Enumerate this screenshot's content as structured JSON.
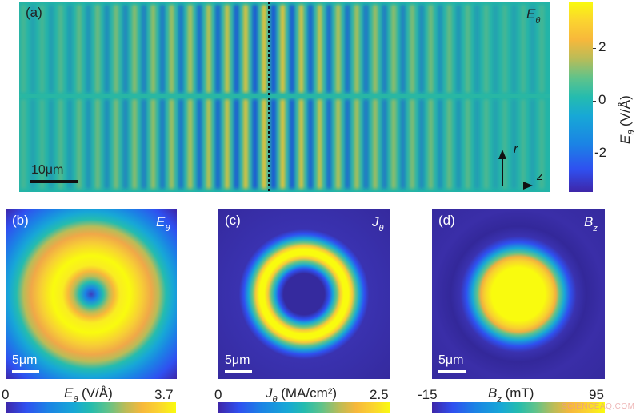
{
  "chart_data": [
    {
      "type": "heatmap",
      "panel": "(a)",
      "title": "E_θ",
      "field": "E_θ",
      "xlabel": "z",
      "ylabel": "r",
      "colorbar": {
        "label": "E_θ (V/Å)",
        "ticks": [
          2,
          0,
          -2
        ],
        "range": [
          -3.4,
          3.5
        ]
      },
      "scale_bar": "10μm",
      "annotations": [
        "dotted vertical line at center (focal plane)",
        "r/z axis arrows at lower right"
      ],
      "description": "Curved wavefronts of alternating positive (yellow) and negative (blue) field, symmetric about r=0, strongest near the center dotted line"
    },
    {
      "type": "heatmap",
      "panel": "(b)",
      "title": "E_θ",
      "field": "E_θ",
      "colorbar": {
        "label": "E_θ (V/Å)",
        "min": 0,
        "max": 3.7
      },
      "scale_bar": "5μm",
      "description": "Doughnut-shaped field: zero at center, bright yellow ring at mid radius"
    },
    {
      "type": "heatmap",
      "panel": "(c)",
      "title": "J_θ",
      "field": "J_θ",
      "colorbar": {
        "label": "J_θ (MA/cm²)",
        "min": 0,
        "max": 2.5
      },
      "scale_bar": "5μm",
      "description": "Narrow ring of current density"
    },
    {
      "type": "heatmap",
      "panel": "(d)",
      "title": "B_z",
      "field": "B_z",
      "colorbar": {
        "label": "B_z (mT)",
        "min": -15,
        "max": 95
      },
      "scale_bar": "5μm",
      "description": "Filled disk of magnetic field, yellow at center"
    }
  ],
  "panelA": {
    "tag": "(a)",
    "field_main": "E",
    "field_sub": "θ",
    "scale": "10μm",
    "axis_r": "r",
    "axis_z": "z"
  },
  "colorbarA": {
    "t2": "2",
    "t0": "0",
    "tm2": "-2",
    "label_main": "E",
    "label_sub": "θ",
    "label_unit": " (V/Å)"
  },
  "panelB": {
    "tag": "(b)",
    "field_main": "E",
    "field_sub": "θ",
    "scale": "5μm",
    "min": "0",
    "max": "3.7",
    "label_main": "E",
    "label_sub": "θ",
    "label_unit": " (V/Å)"
  },
  "panelC": {
    "tag": "(c)",
    "field_main": "J",
    "field_sub": "θ",
    "scale": "5μm",
    "min": "0",
    "max": "2.5",
    "label_main": "J",
    "label_sub": "θ",
    "label_unit": " (MA/cm²)"
  },
  "panelD": {
    "tag": "(d)",
    "field_main": "B",
    "field_sub": "z",
    "scale": "5μm",
    "min": "-15",
    "max": "95",
    "label_main": "B",
    "label_sub": "z",
    "label_unit": " (mT)"
  },
  "watermark": "SCIENCEAQ.COM"
}
